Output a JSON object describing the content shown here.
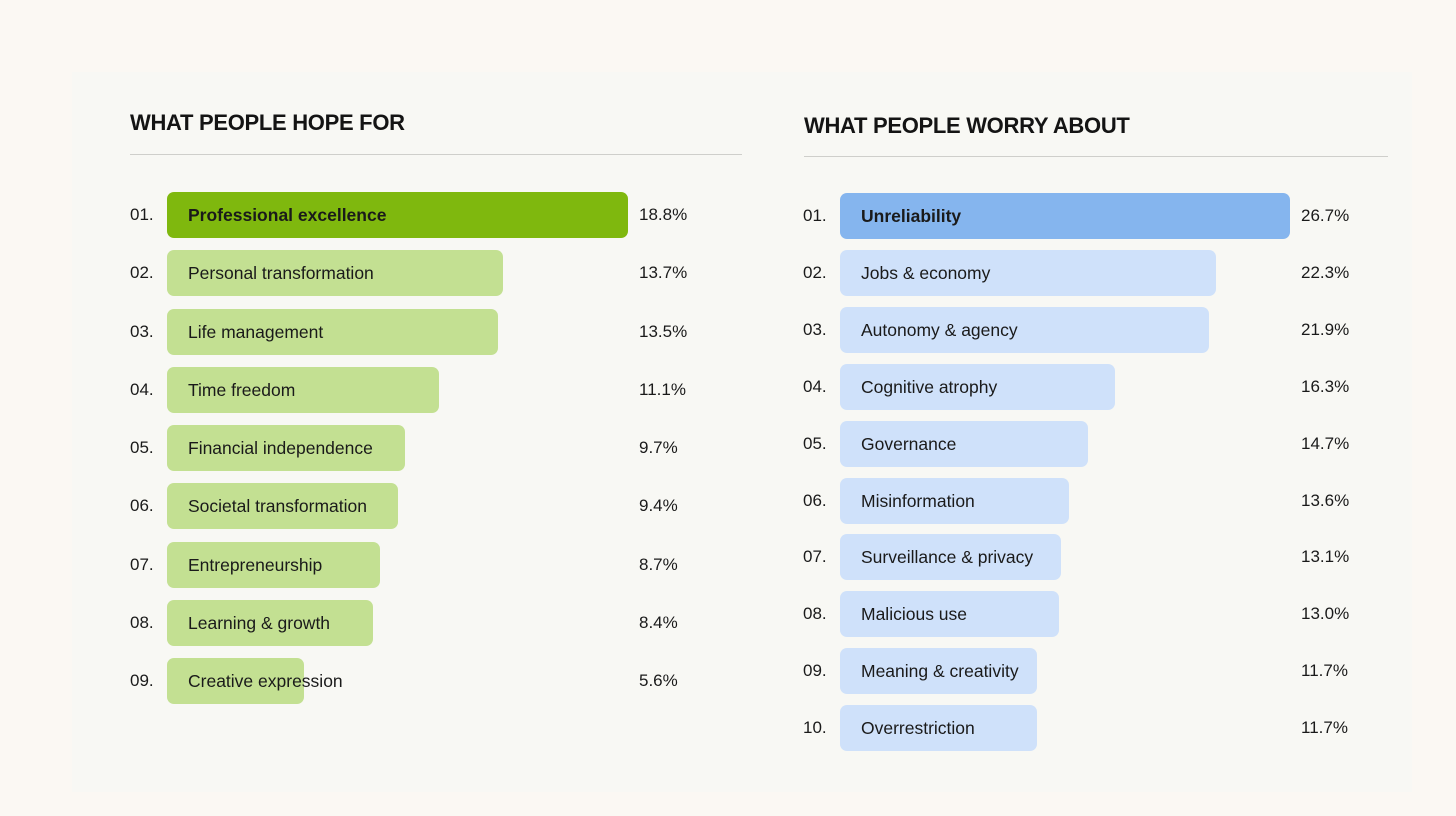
{
  "chart_data": [
    {
      "type": "bar",
      "orientation": "horizontal",
      "title": "WHAT PEOPLE HOPE FOR",
      "colors": {
        "highlight": "#7fb80e",
        "default": "#c3e092"
      },
      "ranks": [
        "01.",
        "02.",
        "03.",
        "04.",
        "05.",
        "06.",
        "07.",
        "08.",
        "09."
      ],
      "categories": [
        "Professional excellence",
        "Personal transformation",
        "Life management",
        "Time freedom",
        "Financial independence",
        "Societal transformation",
        "Entrepreneurship",
        "Learning & growth",
        "Creative expression"
      ],
      "values": [
        18.8,
        13.7,
        13.5,
        11.1,
        9.7,
        9.4,
        8.7,
        8.4,
        5.6
      ],
      "value_labels": [
        "18.8%",
        "13.7%",
        "13.5%",
        "11.1%",
        "9.7%",
        "9.4%",
        "8.7%",
        "8.4%",
        "5.6%"
      ],
      "unit": "%"
    },
    {
      "type": "bar",
      "orientation": "horizontal",
      "title": "WHAT PEOPLE WORRY ABOUT",
      "colors": {
        "highlight": "#85b5ee",
        "default": "#cfe1fa"
      },
      "ranks": [
        "01.",
        "02.",
        "03.",
        "04.",
        "05.",
        "06.",
        "07.",
        "08.",
        "09.",
        "10."
      ],
      "categories": [
        "Unreliability",
        "Jobs & economy",
        "Autonomy & agency",
        "Cognitive atrophy",
        "Governance",
        "Misinformation",
        "Surveillance & privacy",
        "Malicious use",
        "Meaning & creativity",
        "Overrestriction"
      ],
      "values": [
        26.7,
        22.3,
        21.9,
        16.3,
        14.7,
        13.6,
        13.1,
        13.0,
        11.7,
        11.7
      ],
      "value_labels": [
        "26.7%",
        "22.3%",
        "21.9%",
        "16.3%",
        "14.7%",
        "13.6%",
        "13.1%",
        "13.0%",
        "11.7%",
        "11.7%"
      ],
      "unit": "%"
    }
  ]
}
